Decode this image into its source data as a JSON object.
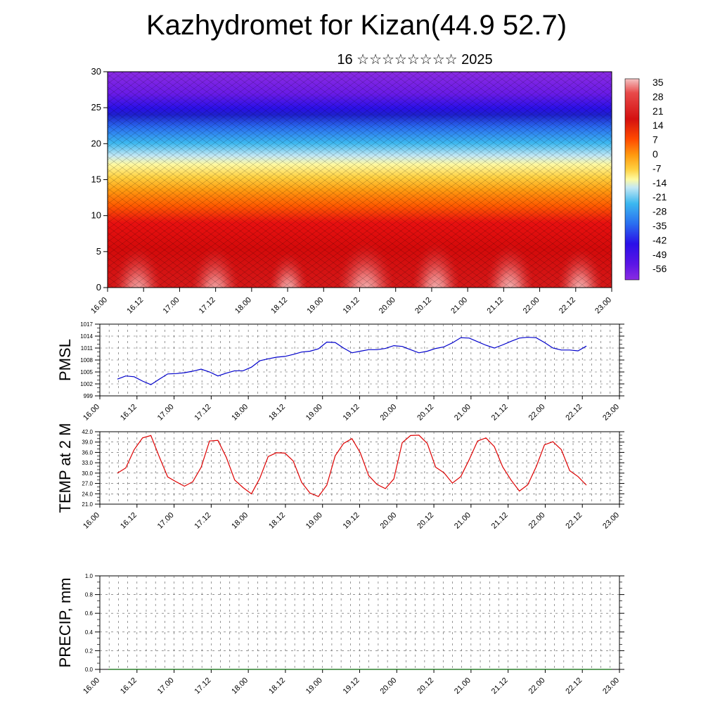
{
  "title": "Kazhydromet for Kizan(44.9 52.7)",
  "subtitle": "16 ☆☆☆☆☆☆☆☆ 2025",
  "chart_data": [
    {
      "type": "heatmap",
      "name": "vertical-section",
      "ylim": [
        0,
        30
      ],
      "yticks": [
        "0",
        "5",
        "10",
        "15",
        "20",
        "25",
        "30"
      ],
      "xticks": [
        "16.00",
        "16.12",
        "17.00",
        "17.12",
        "18.00",
        "18.12",
        "19.00",
        "19.12",
        "20.00",
        "20.12",
        "21.00",
        "21.12",
        "22.00",
        "22.12",
        "23.00"
      ],
      "colorbar": [
        "35",
        "28",
        "21",
        "14",
        "7",
        "0",
        "-7",
        "-14",
        "-21",
        "-28",
        "-35",
        "-42",
        "-49",
        "-56"
      ],
      "grid": false
    },
    {
      "type": "line",
      "name": "pmsl",
      "ylabel": "PMSL",
      "ylim": [
        999,
        1017
      ],
      "yticks": [
        "999",
        "1002",
        "1005",
        "1008",
        "1011",
        "1014",
        "1017"
      ],
      "xticks": [
        "16.00",
        "16.12",
        "17.00",
        "17.12",
        "18.00",
        "18.12",
        "19.00",
        "19.12",
        "20.00",
        "20.12",
        "21.00",
        "21.12",
        "22.00",
        "22.12",
        "23.00"
      ],
      "color": "#0000cc",
      "values": [
        1003.2,
        1004.0,
        1003.8,
        1002.7,
        1001.8,
        1003.2,
        1004.5,
        1004.6,
        1004.8,
        1005.2,
        1005.7,
        1005.0,
        1004.0,
        1004.7,
        1005.3,
        1005.3,
        1006.2,
        1007.8,
        1008.3,
        1008.7,
        1008.9,
        1009.4,
        1010.0,
        1010.2,
        1010.8,
        1012.5,
        1012.4,
        1011.0,
        1009.8,
        1010.2,
        1010.6,
        1010.6,
        1010.9,
        1011.6,
        1011.4,
        1010.6,
        1009.8,
        1010.2,
        1010.9,
        1011.3,
        1012.3,
        1013.6,
        1013.5,
        1012.6,
        1011.7,
        1011.0,
        1011.8,
        1012.7,
        1013.5,
        1013.7,
        1013.6,
        1012.4,
        1011.0,
        1010.5,
        1010.5,
        1010.3,
        1011.5
      ],
      "grid": true
    },
    {
      "type": "line",
      "name": "temp2m",
      "ylabel": "TEMP at 2 M",
      "ylim": [
        21,
        42
      ],
      "yticks": [
        "21.0",
        "24.0",
        "27.0",
        "30.0",
        "33.0",
        "36.0",
        "39.0",
        "42.0"
      ],
      "xticks": [
        "16.00",
        "16.12",
        "17.00",
        "17.12",
        "18.00",
        "18.12",
        "19.00",
        "19.12",
        "20.00",
        "20.12",
        "21.00",
        "21.12",
        "22.00",
        "22.12",
        "23.00"
      ],
      "color": "#dd0000",
      "values": [
        30.0,
        31.5,
        36.8,
        40.2,
        40.9,
        34.7,
        28.9,
        27.5,
        26.2,
        27.5,
        31.7,
        39.3,
        39.5,
        34.6,
        28.0,
        25.8,
        24.0,
        28.5,
        34.8,
        35.9,
        35.8,
        33.5,
        27.3,
        24.2,
        23.2,
        26.5,
        35.0,
        38.6,
        40.0,
        35.9,
        29.3,
        26.7,
        25.5,
        28.3,
        38.8,
        40.9,
        41.0,
        38.6,
        31.7,
        30.1,
        27.1,
        29.0,
        33.9,
        39.3,
        40.2,
        37.7,
        31.8,
        28.0,
        24.8,
        26.6,
        31.8,
        38.2,
        39.1,
        36.8,
        30.7,
        29.0,
        26.5
      ],
      "grid": true
    },
    {
      "type": "line",
      "name": "precip",
      "ylabel": "PRECIP, mm",
      "ylim": [
        0,
        1
      ],
      "yticks": [
        "0.0",
        "0.2",
        "0.4",
        "0.6",
        "0.8",
        "1.0"
      ],
      "xticks": [
        "16.00",
        "16.12",
        "17.00",
        "17.12",
        "18.00",
        "18.12",
        "19.00",
        "19.12",
        "20.00",
        "20.12",
        "21.00",
        "21.12",
        "22.00",
        "22.12",
        "23.00"
      ],
      "color": "#006400",
      "values": [
        0,
        0,
        0,
        0,
        0,
        0,
        0,
        0,
        0,
        0,
        0,
        0,
        0,
        0,
        0
      ],
      "grid": true
    }
  ]
}
